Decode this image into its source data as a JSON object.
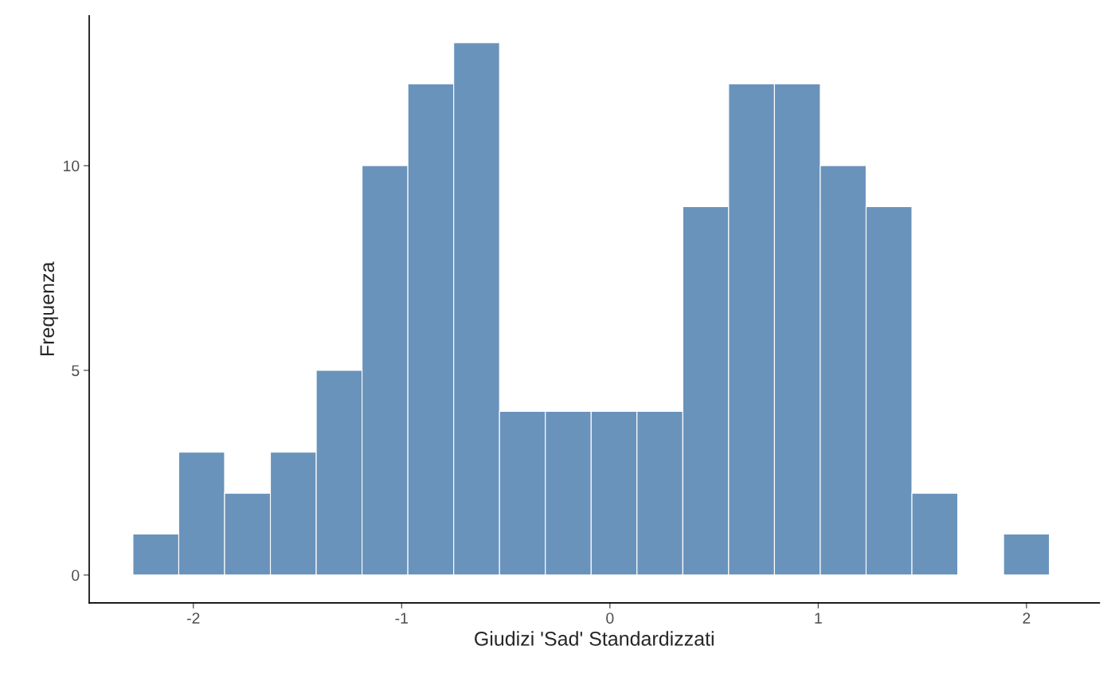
{
  "chart_data": {
    "type": "histogram",
    "xlabel": "Giudizi 'Sad' Standardizzati",
    "ylabel": "Frequenza",
    "bins": [
      -2.29,
      -2.07,
      -1.85,
      -1.63,
      -1.41,
      -1.19,
      -0.97,
      -0.75,
      -0.53,
      -0.31,
      -0.09,
      0.13,
      0.35,
      0.57,
      0.79,
      1.01,
      1.23,
      1.45,
      1.67,
      1.89,
      2.11
    ],
    "values": [
      1,
      3,
      2,
      3,
      5,
      10,
      12,
      13,
      4,
      4,
      4,
      4,
      9,
      12,
      12,
      10,
      9,
      2,
      0,
      1
    ],
    "color": "#6a93bb",
    "xlim": [
      -2.5,
      2.35
    ],
    "ylim": [
      -0.68,
      13.66
    ],
    "xticks": [
      -2,
      -1,
      0,
      1,
      2
    ],
    "yticks": [
      0,
      5,
      10
    ],
    "grid": false
  }
}
